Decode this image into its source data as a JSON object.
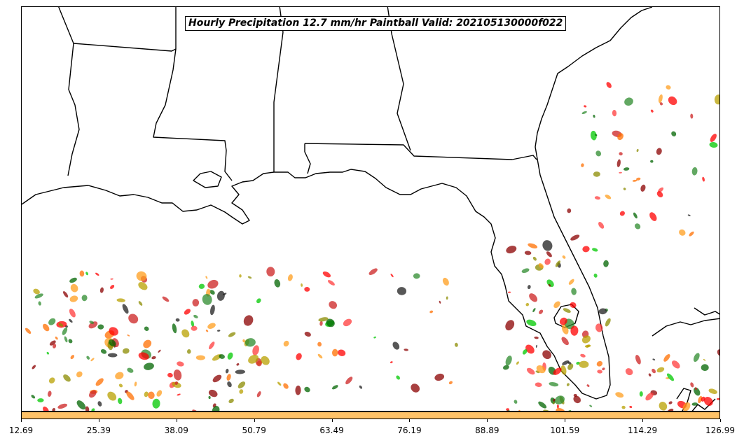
{
  "title": "Hourly Precipitation 12.7 mm/hr Paintball Valid: 202105130000f022",
  "colorbar": {
    "color": "#ffc267",
    "ticks": [
      "12.69",
      "25.39",
      "38.09",
      "50.79",
      "63.49",
      "76.19",
      "88.89",
      "101.59",
      "114.29",
      "126.99"
    ]
  },
  "member_colors": [
    "#ff0000",
    "#ff6f00",
    "#ff9d1e",
    "#8b0000",
    "#006400",
    "#00c800",
    "#8b8b00",
    "#b8a000",
    "#1f1f1f",
    "#ff3b3b",
    "#2e8b2e",
    "#cc2222"
  ],
  "map": {
    "region": "US Gulf Coast and Florida",
    "features": [
      "state-borders",
      "coastline",
      "precipitation-blobs"
    ]
  }
}
